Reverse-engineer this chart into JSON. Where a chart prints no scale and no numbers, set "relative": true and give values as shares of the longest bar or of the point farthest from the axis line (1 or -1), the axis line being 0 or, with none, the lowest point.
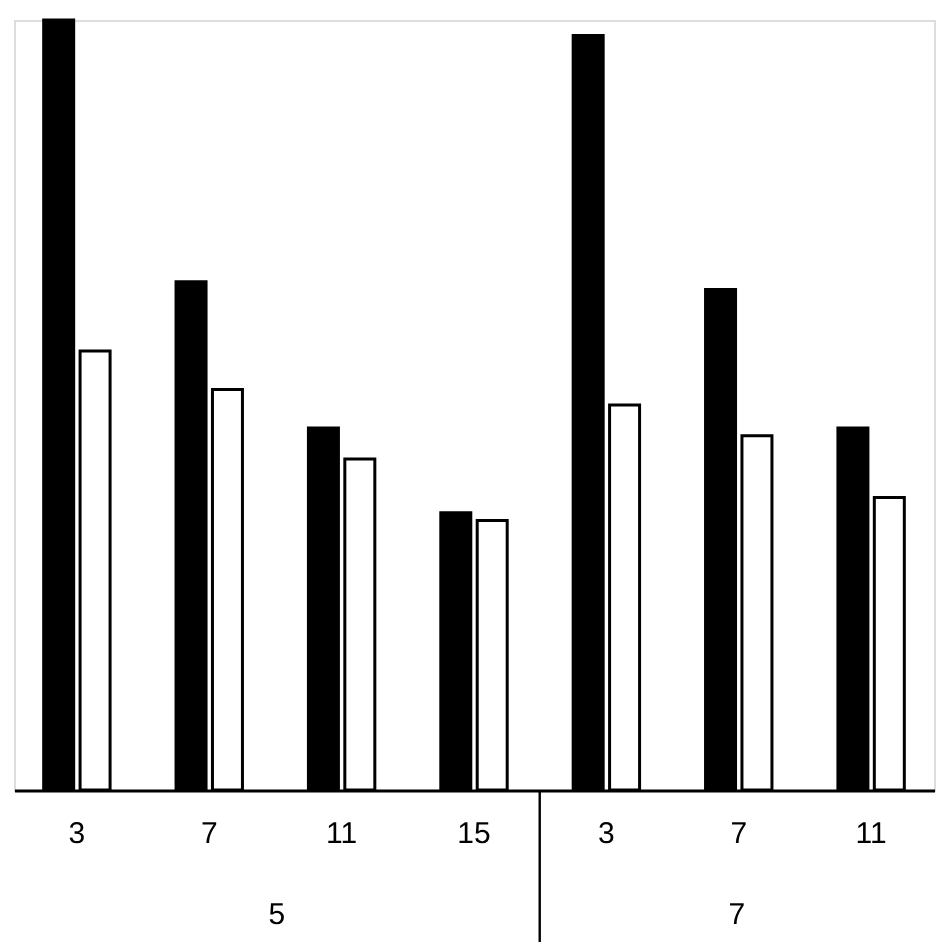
{
  "chart_data": {
    "type": "bar",
    "relative": true,
    "categories": [
      "3",
      "7",
      "11",
      "15",
      "3",
      "7",
      "11"
    ],
    "series": [
      {
        "color": "#000000",
        "values": [
          1.0,
          0.66,
          0.47,
          0.36,
          0.98,
          0.65,
          0.47
        ]
      },
      {
        "color": "#ffffff",
        "values": [
          0.57,
          0.52,
          0.43,
          0.35,
          0.5,
          0.46,
          0.38
        ]
      }
    ],
    "annotations": [
      "5",
      "7"
    ],
    "grid": false,
    "legend": false
  }
}
